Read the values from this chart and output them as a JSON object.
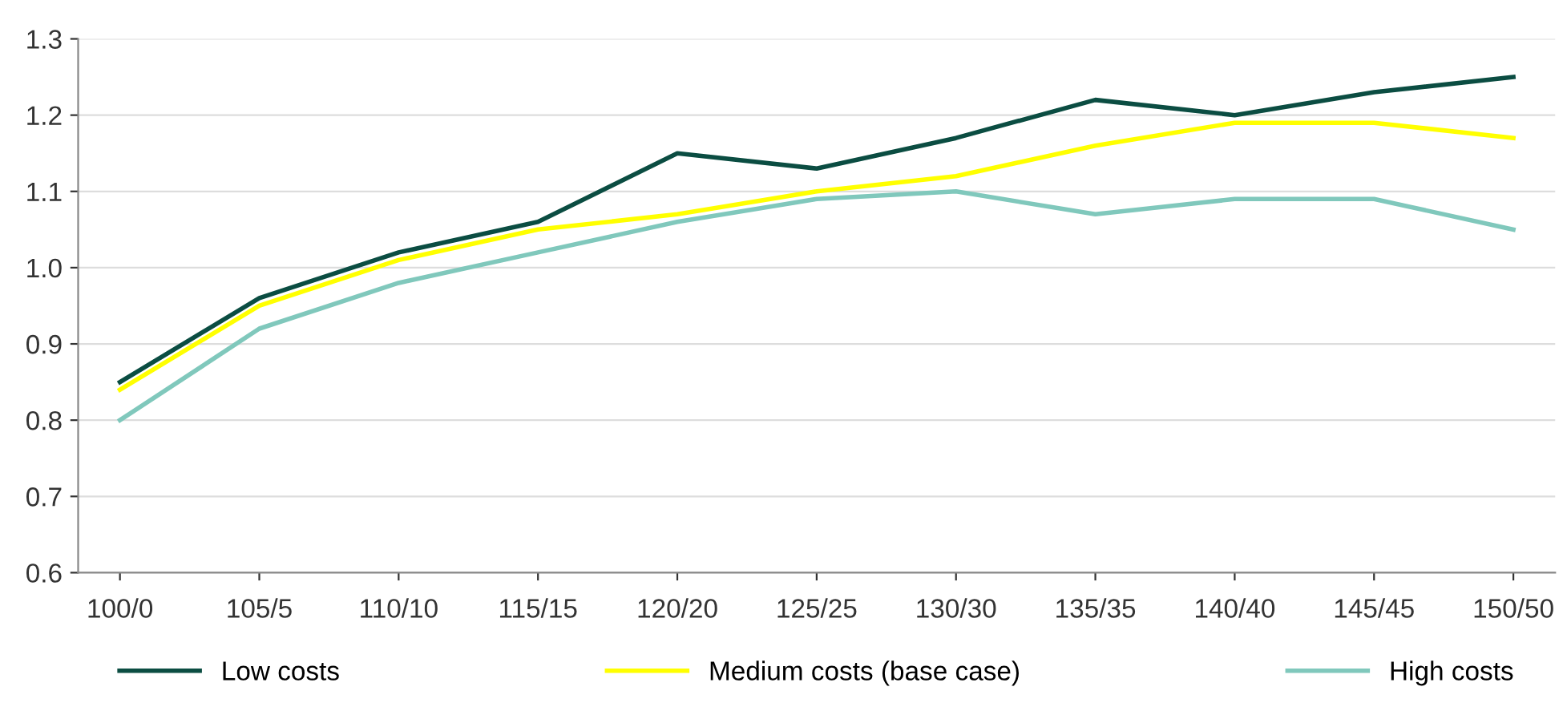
{
  "chart_data": {
    "type": "line",
    "categories": [
      "100/0",
      "105/5",
      "110/10",
      "115/15",
      "120/20",
      "125/25",
      "130/30",
      "135/35",
      "140/40",
      "145/45",
      "150/50"
    ],
    "series": [
      {
        "name": "Low costs",
        "color": "#0b4d42",
        "values": [
          0.85,
          0.96,
          1.02,
          1.06,
          1.15,
          1.13,
          1.17,
          1.22,
          1.2,
          1.23,
          1.25
        ]
      },
      {
        "name": "Medium costs (base case)",
        "color": "#ffff00",
        "values": [
          0.84,
          0.95,
          1.01,
          1.05,
          1.07,
          1.1,
          1.12,
          1.16,
          1.19,
          1.19,
          1.17
        ]
      },
      {
        "name": "High costs",
        "color": "#80c8bc",
        "values": [
          0.8,
          0.92,
          0.98,
          1.02,
          1.06,
          1.09,
          1.1,
          1.07,
          1.09,
          1.09,
          1.05
        ]
      }
    ],
    "ylim": [
      0.6,
      1.3
    ],
    "yticks": [
      {
        "value": 0.6,
        "label": "0.6"
      },
      {
        "value": 0.7,
        "label": "0.7"
      },
      {
        "value": 0.8,
        "label": "0.8"
      },
      {
        "value": 0.9,
        "label": "0.9"
      },
      {
        "value": 1.0,
        "label": "1.0"
      },
      {
        "value": 1.1,
        "label": "1.1"
      },
      {
        "value": 1.2,
        "label": "1.2"
      },
      {
        "value": 1.3,
        "label": "1.3"
      }
    ],
    "grid": "y",
    "legend": "bottom",
    "marker": "none",
    "line_style": "solid"
  }
}
